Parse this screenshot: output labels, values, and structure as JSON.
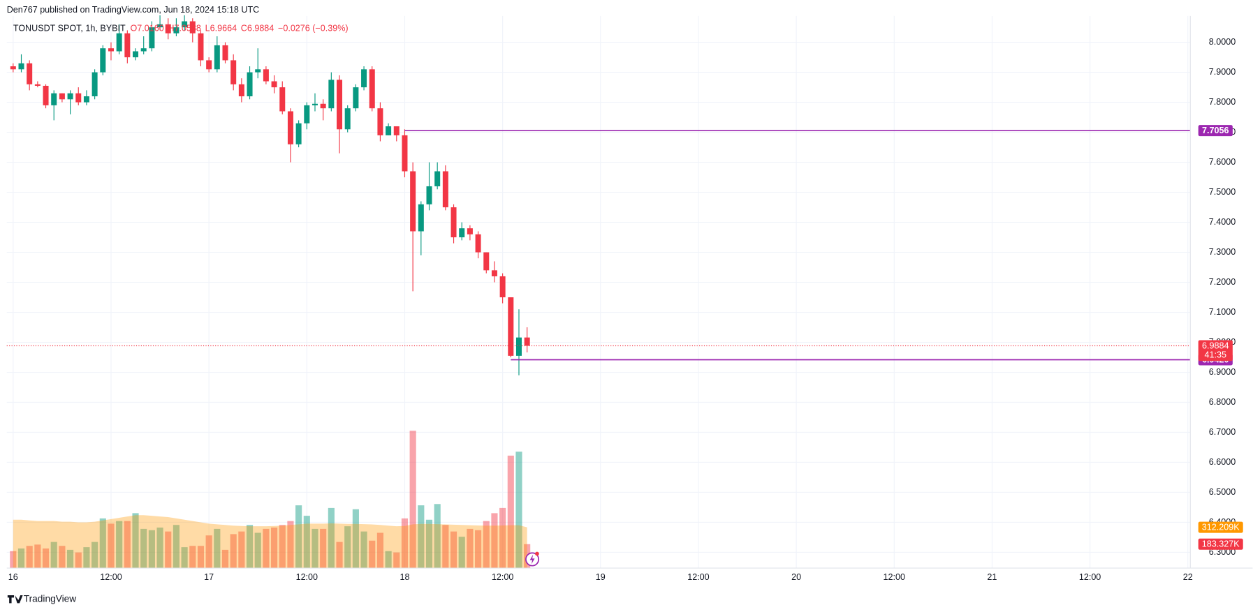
{
  "header": {
    "published": "Den767 published on TradingView.com, Jun 18, 2024 15:18 UTC"
  },
  "footer": {
    "brand": "TradingView"
  },
  "chart_data": {
    "type": "candlestick",
    "symbol": "TONUSDT SPOT, 1h, BYBIT",
    "ohlc_labels": [
      "O7.0160",
      "H7.0588",
      "L6.9664",
      "C6.9884"
    ],
    "change_label": "−0.0276 (−0.39%)",
    "up_color": "#089981",
    "down_color": "#f23645",
    "grid": true,
    "xlim": [
      -0.78,
      144.3
    ],
    "xticks": [
      {
        "value": 0,
        "label": "16"
      },
      {
        "value": 12,
        "label": "12:00"
      },
      {
        "value": 24,
        "label": "17"
      },
      {
        "value": 36,
        "label": "12:00"
      },
      {
        "value": 48,
        "label": "18"
      },
      {
        "value": 60,
        "label": "12:00"
      },
      {
        "value": 72,
        "label": "19"
      },
      {
        "value": 84,
        "label": "12:00"
      },
      {
        "value": 96,
        "label": "20"
      },
      {
        "value": 108,
        "label": "12:00"
      },
      {
        "value": 120,
        "label": "21"
      },
      {
        "value": 132,
        "label": "12:00"
      },
      {
        "value": 144,
        "label": "22"
      }
    ],
    "ylim": [
      6.2473,
      8.0878
    ],
    "yticks": [
      {
        "value": 6.3,
        "label": "6.3000"
      },
      {
        "value": 6.4,
        "label": "6.4000"
      },
      {
        "value": 6.5,
        "label": "6.5000"
      },
      {
        "value": 6.6,
        "label": "6.6000"
      },
      {
        "value": 6.7,
        "label": "6.7000"
      },
      {
        "value": 6.8,
        "label": "6.8000"
      },
      {
        "value": 6.9,
        "label": "6.9000"
      },
      {
        "value": 7.0,
        "label": "7.0000"
      },
      {
        "value": 7.1,
        "label": "7.1000"
      },
      {
        "value": 7.2,
        "label": "7.2000"
      },
      {
        "value": 7.3,
        "label": "7.3000"
      },
      {
        "value": 7.4,
        "label": "7.4000"
      },
      {
        "value": 7.5,
        "label": "7.5000"
      },
      {
        "value": 7.6,
        "label": "7.6000"
      },
      {
        "value": 7.7,
        "label": "7.7000"
      },
      {
        "value": 7.8,
        "label": "7.8000"
      },
      {
        "value": 7.9,
        "label": "7.9000"
      },
      {
        "value": 8.0,
        "label": "8.0000"
      }
    ],
    "open": [
      7.92,
      7.91,
      7.93,
      7.86,
      7.855,
      7.79,
      7.83,
      7.81,
      7.83,
      7.8,
      7.82,
      7.9,
      7.98,
      7.97,
      8.03,
      7.95,
      7.97,
      7.98,
      8.05,
      8.06,
      8.03,
      8.05,
      8.07,
      8.03,
      7.94,
      7.91,
      7.99,
      7.94,
      7.86,
      7.82,
      7.9,
      7.91,
      7.87,
      7.85,
      7.77,
      7.66,
      7.73,
      7.79,
      7.795,
      7.78,
      7.875,
      7.71,
      7.78,
      7.85,
      7.91,
      7.78,
      7.69,
      7.72,
      7.69,
      7.57,
      7.37,
      7.46,
      7.52,
      7.57,
      7.45,
      7.35,
      7.38,
      7.36,
      7.3,
      7.24,
      7.22,
      7.15,
      6.955,
      7.016
    ],
    "high": [
      7.93,
      7.96,
      7.94,
      7.87,
      7.86,
      7.84,
      7.83,
      7.84,
      7.85,
      7.84,
      7.91,
      7.99,
      8.0,
      8.06,
      8.04,
      7.98,
      8.02,
      8.07,
      8.09,
      8.08,
      8.08,
      8.09,
      8.08,
      8.04,
      7.95,
      8.02,
      8.0,
      7.96,
      7.88,
      7.92,
      7.98,
      7.92,
      7.89,
      7.87,
      7.78,
      7.74,
      7.8,
      7.83,
      7.81,
      7.9,
      7.89,
      7.79,
      7.86,
      7.92,
      7.92,
      7.8,
      7.73,
      7.72,
      7.71,
      7.6,
      7.47,
      7.6,
      7.6,
      7.59,
      7.46,
      7.4,
      7.39,
      7.37,
      7.3,
      7.27,
      7.23,
      7.15,
      7.11,
      7.05
    ],
    "low": [
      7.9,
      7.9,
      7.84,
      7.85,
      7.78,
      7.74,
      7.8,
      7.76,
      7.79,
      7.79,
      7.81,
      7.89,
      7.94,
      7.96,
      7.93,
      7.94,
      7.96,
      7.97,
      8.04,
      8.01,
      8.02,
      8.04,
      8.0,
      7.92,
      7.9,
      7.9,
      7.93,
      7.84,
      7.8,
      7.81,
      7.88,
      7.86,
      7.83,
      7.76,
      7.6,
      7.65,
      7.71,
      7.77,
      7.74,
      7.77,
      7.63,
      7.7,
      7.77,
      7.84,
      7.77,
      7.67,
      7.69,
      7.67,
      7.55,
      7.17,
      7.29,
      7.44,
      7.51,
      7.44,
      7.33,
      7.34,
      7.34,
      7.28,
      7.23,
      7.2,
      7.13,
      6.95,
      6.89,
      6.9664
    ],
    "close": [
      7.91,
      7.93,
      7.86,
      7.855,
      7.79,
      7.83,
      7.81,
      7.83,
      7.8,
      7.82,
      7.9,
      7.98,
      7.97,
      8.03,
      7.95,
      7.97,
      7.98,
      8.05,
      8.06,
      8.03,
      8.05,
      8.07,
      8.03,
      7.94,
      7.91,
      7.99,
      7.94,
      7.86,
      7.82,
      7.9,
      7.91,
      7.87,
      7.85,
      7.77,
      7.66,
      7.73,
      7.79,
      7.795,
      7.78,
      7.875,
      7.71,
      7.78,
      7.85,
      7.91,
      7.78,
      7.69,
      7.72,
      7.69,
      7.57,
      7.37,
      7.46,
      7.52,
      7.57,
      7.45,
      7.35,
      7.38,
      7.36,
      7.3,
      7.24,
      7.22,
      7.15,
      6.955,
      7.016,
      6.9884
    ],
    "volume": [
      130000,
      150000,
      170000,
      180000,
      150000,
      200000,
      170000,
      140000,
      120000,
      160000,
      200000,
      380000,
      340000,
      360000,
      360000,
      420000,
      300000,
      290000,
      310000,
      280000,
      330000,
      160000,
      170000,
      170000,
      250000,
      300000,
      140000,
      260000,
      280000,
      330000,
      270000,
      300000,
      310000,
      330000,
      360000,
      480000,
      400000,
      300000,
      300000,
      460000,
      200000,
      320000,
      450000,
      280000,
      210000,
      270000,
      130000,
      120000,
      380000,
      1050000,
      480000,
      370000,
      490000,
      330000,
      280000,
      240000,
      300000,
      290000,
      360000,
      420000,
      460000,
      860000,
      890000,
      183327
    ],
    "volume_last_label": "183.327K",
    "volume_ma": [
      370000,
      370000,
      365000,
      360000,
      360000,
      360000,
      355000,
      355000,
      350000,
      350000,
      355000,
      365000,
      375000,
      385000,
      395000,
      405000,
      405000,
      400000,
      395000,
      390000,
      380000,
      370000,
      360000,
      350000,
      340000,
      335000,
      330000,
      325000,
      322000,
      320000,
      320000,
      320000,
      322000,
      325000,
      330000,
      335000,
      340000,
      340000,
      340000,
      342000,
      340000,
      338000,
      338000,
      336000,
      334000,
      330000,
      325000,
      320000,
      322000,
      335000,
      338000,
      338000,
      336000,
      334000,
      332000,
      330000,
      328000,
      326000,
      325000,
      325000,
      326000,
      328000,
      328000,
      312209
    ],
    "volume_ma_label": "312.209K",
    "volume_ma_color": "#ff9800",
    "levels": [
      {
        "value": 7.7056,
        "label": "7.7056",
        "start": 48,
        "color": "#9c27b0"
      },
      {
        "value": 6.942,
        "label": "6.9420",
        "start": 61,
        "color": "#9c27b0"
      }
    ],
    "last_price": {
      "value": 6.9884,
      "label": "6.9884",
      "countdown": "41:35"
    }
  }
}
